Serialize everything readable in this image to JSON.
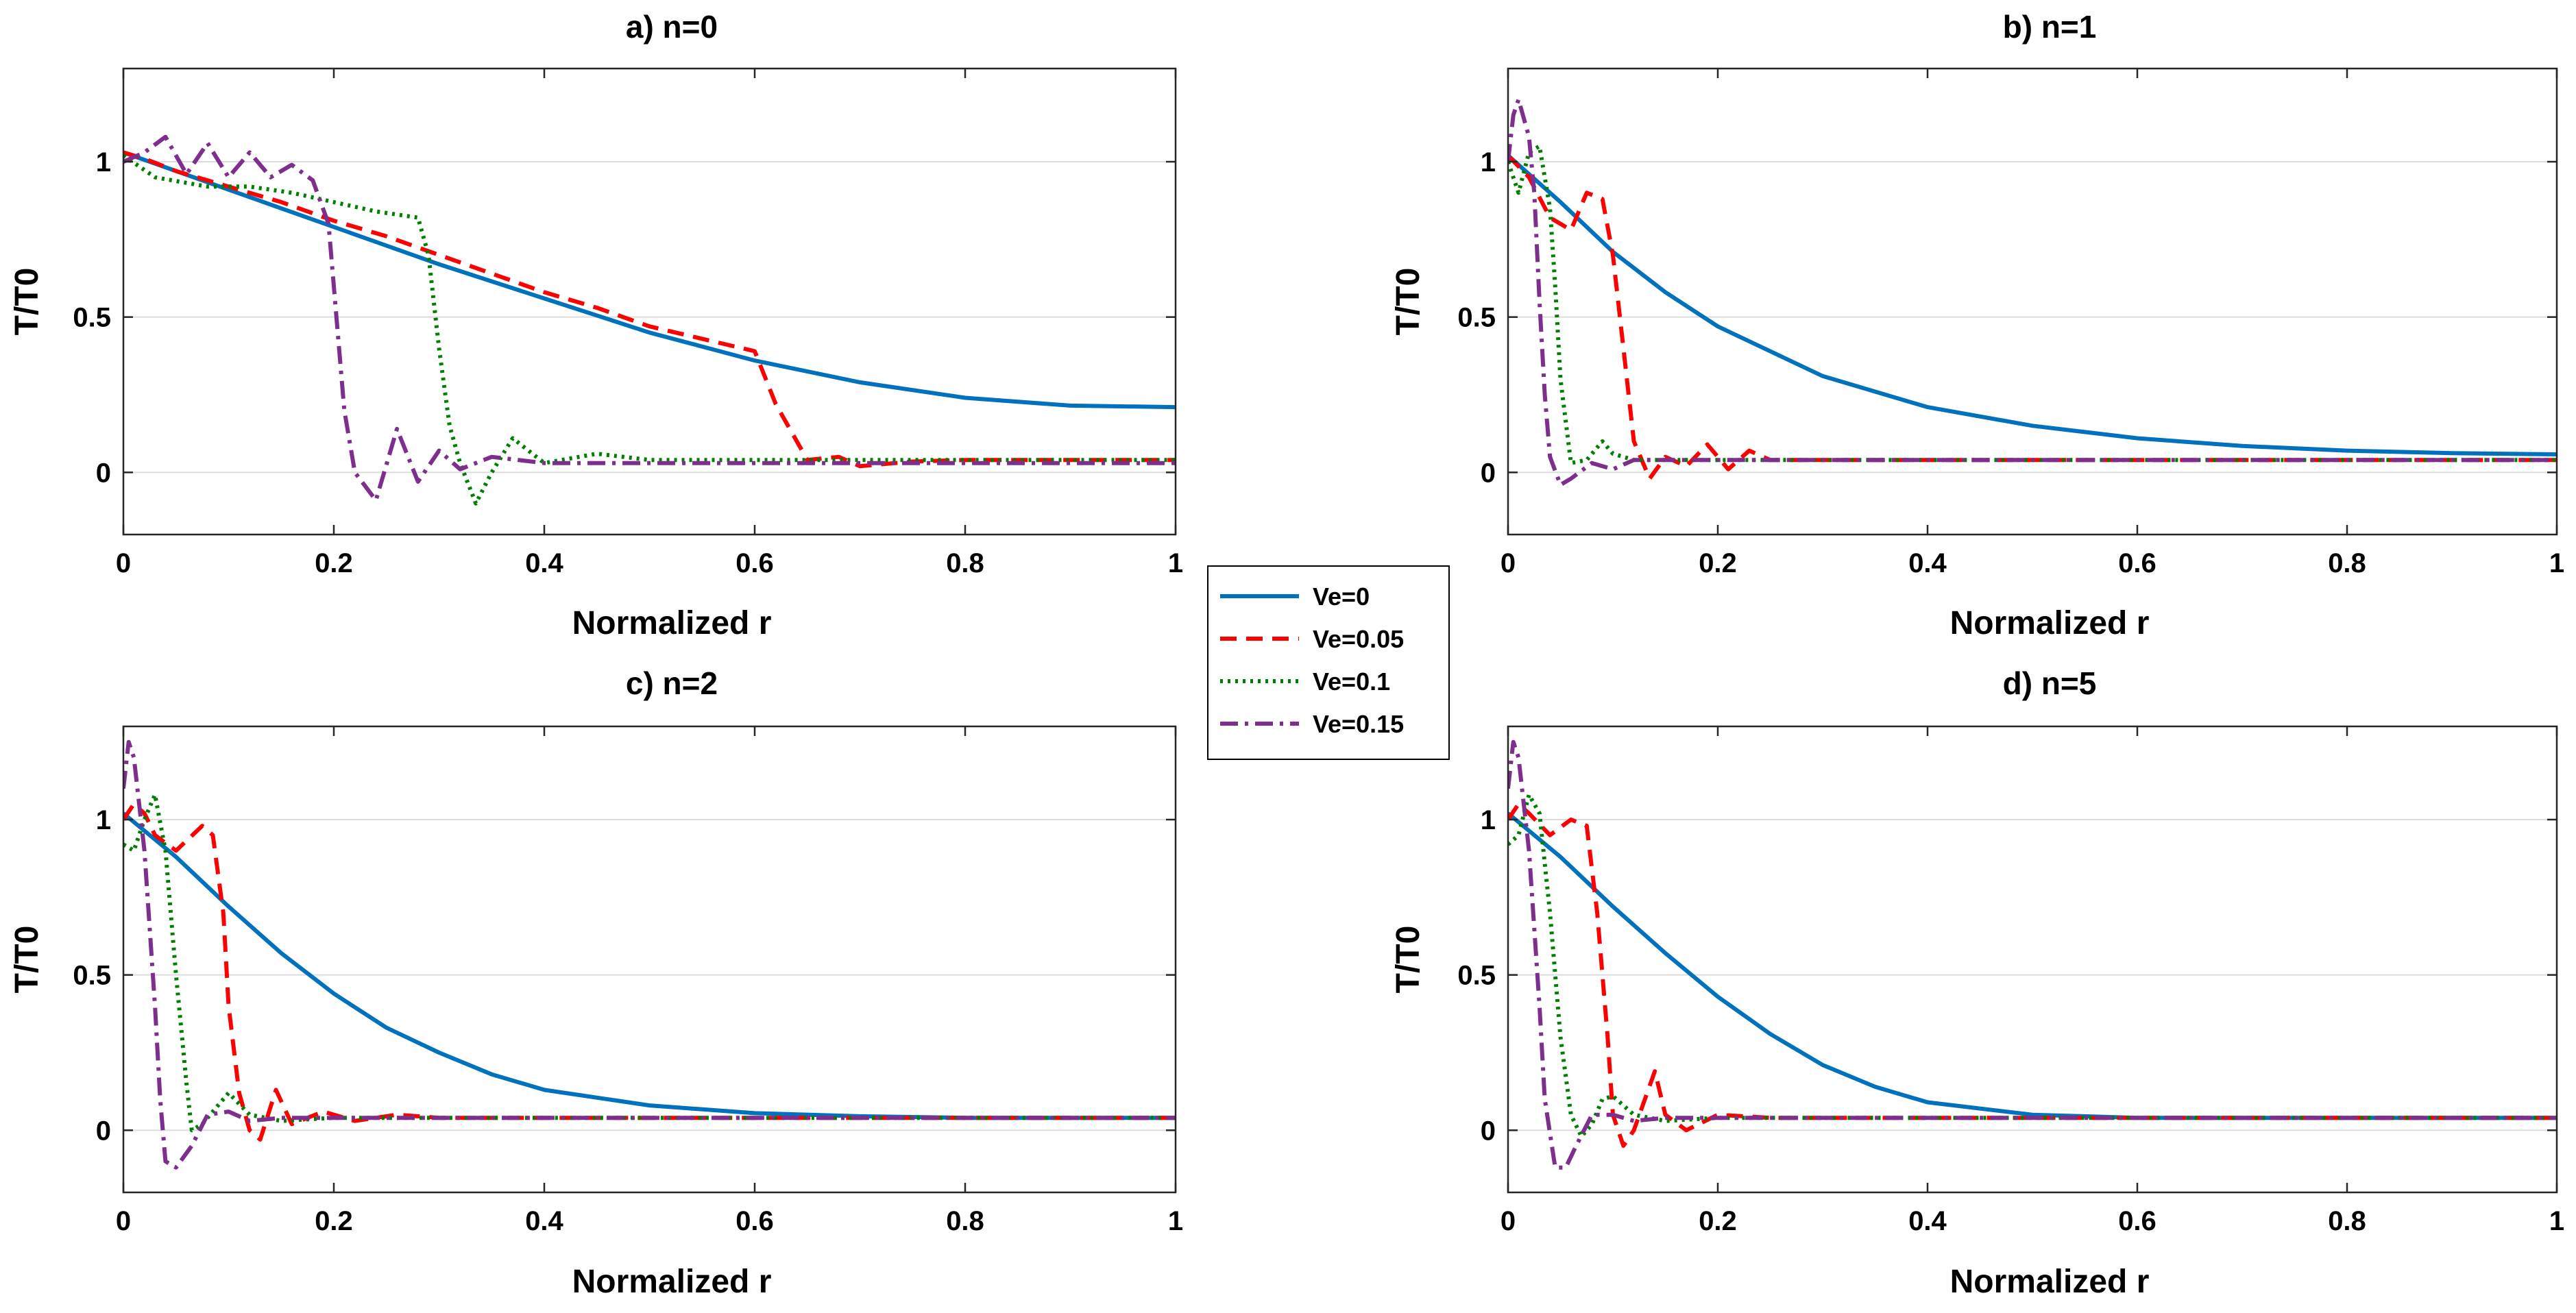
{
  "legend": {
    "entries": [
      {
        "label": "Ve=0",
        "color": "#0072BD",
        "dash": "solid"
      },
      {
        "label": "Ve=0.05",
        "color": "#FF0000",
        "dash": "dash"
      },
      {
        "label": "Ve=0.1",
        "color": "#008000",
        "dash": "dot"
      },
      {
        "label": "Ve=0.15",
        "color": "#7E2F8E",
        "dash": "dashdot"
      }
    ]
  },
  "chart_data": [
    {
      "type": "line",
      "title": "a) n=0",
      "xlabel": "Normalized r",
      "ylabel": "T/T0",
      "xlim": [
        0,
        1
      ],
      "ylim": [
        -0.2,
        1.3
      ],
      "xticks": [
        0,
        0.2,
        0.4,
        0.6,
        0.8,
        1
      ],
      "xtick_labels": [
        "0",
        "0.2",
        "0.4",
        "0.6",
        "0.8",
        "1"
      ],
      "yticks": [
        0,
        0.5,
        1
      ],
      "ytick_labels": [
        "0",
        "0.5",
        "1"
      ],
      "grid": "horizontal",
      "series": [
        {
          "name": "Ve=0",
          "x": [
            0,
            0.1,
            0.2,
            0.3,
            0.4,
            0.5,
            0.6,
            0.7,
            0.8,
            0.9,
            1.0
          ],
          "y": [
            1.03,
            0.91,
            0.79,
            0.67,
            0.56,
            0.45,
            0.36,
            0.29,
            0.24,
            0.215,
            0.21
          ]
        },
        {
          "name": "Ve=0.05",
          "x": [
            0,
            0.02,
            0.05,
            0.1,
            0.15,
            0.2,
            0.25,
            0.3,
            0.35,
            0.4,
            0.45,
            0.5,
            0.55,
            0.6,
            0.62,
            0.65,
            0.68,
            0.7,
            0.75,
            0.8,
            1.0
          ],
          "y": [
            1.03,
            1.01,
            0.97,
            0.92,
            0.87,
            0.81,
            0.76,
            0.7,
            0.64,
            0.58,
            0.53,
            0.47,
            0.43,
            0.39,
            0.22,
            0.04,
            0.05,
            0.02,
            0.035,
            0.04,
            0.04
          ]
        },
        {
          "name": "Ve=0.1",
          "x": [
            0,
            0.03,
            0.08,
            0.12,
            0.16,
            0.2,
            0.24,
            0.28,
            0.29,
            0.3,
            0.31,
            0.32,
            0.335,
            0.35,
            0.37,
            0.4,
            0.45,
            0.5,
            1.0
          ],
          "y": [
            1.02,
            0.95,
            0.92,
            0.92,
            0.9,
            0.87,
            0.84,
            0.82,
            0.7,
            0.4,
            0.15,
            0.03,
            -0.1,
            0.0,
            0.11,
            0.03,
            0.06,
            0.04,
            0.04
          ]
        },
        {
          "name": "Ve=0.15",
          "x": [
            0,
            0.02,
            0.04,
            0.06,
            0.08,
            0.1,
            0.12,
            0.14,
            0.16,
            0.18,
            0.195,
            0.21,
            0.22,
            0.24,
            0.26,
            0.28,
            0.3,
            0.32,
            0.35,
            0.4,
            1.0
          ],
          "y": [
            1.0,
            1.03,
            1.08,
            0.96,
            1.06,
            0.95,
            1.03,
            0.95,
            0.99,
            0.94,
            0.8,
            0.2,
            0.0,
            -0.09,
            0.14,
            -0.03,
            0.07,
            0.01,
            0.05,
            0.03,
            0.03
          ]
        }
      ]
    },
    {
      "type": "line",
      "title": "b) n=1",
      "xlabel": "Normalized r",
      "ylabel": "T/T0",
      "xlim": [
        0,
        1
      ],
      "ylim": [
        -0.2,
        1.3
      ],
      "xticks": [
        0,
        0.2,
        0.4,
        0.6,
        0.8,
        1
      ],
      "xtick_labels": [
        "0",
        "0.2",
        "0.4",
        "0.6",
        "0.8",
        "1"
      ],
      "yticks": [
        0,
        0.5,
        1
      ],
      "ytick_labels": [
        "0",
        "0.5",
        "1"
      ],
      "grid": "horizontal",
      "series": [
        {
          "name": "Ve=0",
          "x": [
            0,
            0.05,
            0.1,
            0.15,
            0.2,
            0.3,
            0.4,
            0.5,
            0.6,
            0.7,
            0.8,
            0.9,
            1.0
          ],
          "y": [
            1.02,
            0.87,
            0.71,
            0.58,
            0.47,
            0.31,
            0.21,
            0.15,
            0.11,
            0.085,
            0.07,
            0.062,
            0.058
          ]
        },
        {
          "name": "Ve=0.05",
          "x": [
            0,
            0.02,
            0.04,
            0.06,
            0.075,
            0.09,
            0.1,
            0.11,
            0.12,
            0.135,
            0.15,
            0.17,
            0.19,
            0.21,
            0.23,
            0.25,
            1.0
          ],
          "y": [
            1.02,
            0.95,
            0.82,
            0.78,
            0.9,
            0.88,
            0.7,
            0.4,
            0.1,
            -0.02,
            0.05,
            0.02,
            0.09,
            0.01,
            0.07,
            0.04,
            0.04
          ]
        },
        {
          "name": "Ve=0.1",
          "x": [
            0,
            0.01,
            0.02,
            0.03,
            0.04,
            0.045,
            0.05,
            0.06,
            0.075,
            0.09,
            0.1,
            0.12,
            0.15,
            1.0
          ],
          "y": [
            1.0,
            0.9,
            1.03,
            1.05,
            0.85,
            0.6,
            0.3,
            0.03,
            0.04,
            0.1,
            0.06,
            0.04,
            0.04,
            0.04
          ]
        },
        {
          "name": "Ve=0.15",
          "x": [
            0,
            0.005,
            0.01,
            0.02,
            0.025,
            0.03,
            0.035,
            0.04,
            0.05,
            0.06,
            0.08,
            0.1,
            0.12,
            0.15,
            1.0
          ],
          "y": [
            1.0,
            1.15,
            1.2,
            1.08,
            0.9,
            0.55,
            0.25,
            0.05,
            -0.04,
            -0.02,
            0.03,
            0.01,
            0.04,
            0.04,
            0.04
          ]
        }
      ]
    },
    {
      "type": "line",
      "title": "c) n=2",
      "xlabel": "Normalized r",
      "ylabel": "T/T0",
      "xlim": [
        0,
        1
      ],
      "ylim": [
        -0.2,
        1.3
      ],
      "xticks": [
        0,
        0.2,
        0.4,
        0.6,
        0.8,
        1
      ],
      "xtick_labels": [
        "0",
        "0.2",
        "0.4",
        "0.6",
        "0.8",
        "1"
      ],
      "yticks": [
        0,
        0.5,
        1
      ],
      "ytick_labels": [
        "0",
        "0.5",
        "1"
      ],
      "grid": "horizontal",
      "series": [
        {
          "name": "Ve=0",
          "x": [
            0,
            0.05,
            0.1,
            0.15,
            0.2,
            0.25,
            0.3,
            0.35,
            0.4,
            0.5,
            0.6,
            0.7,
            0.8,
            1.0
          ],
          "y": [
            1.02,
            0.88,
            0.72,
            0.57,
            0.44,
            0.33,
            0.25,
            0.18,
            0.13,
            0.08,
            0.055,
            0.045,
            0.04,
            0.04
          ]
        },
        {
          "name": "Ve=0.05",
          "x": [
            0,
            0.01,
            0.02,
            0.03,
            0.05,
            0.075,
            0.085,
            0.095,
            0.1,
            0.11,
            0.12,
            0.13,
            0.145,
            0.16,
            0.19,
            0.22,
            0.26,
            0.3,
            1.0
          ],
          "y": [
            1.0,
            1.05,
            1.02,
            0.95,
            0.9,
            0.98,
            0.95,
            0.7,
            0.4,
            0.12,
            0.0,
            -0.03,
            0.13,
            0.02,
            0.06,
            0.03,
            0.05,
            0.04,
            0.04
          ]
        },
        {
          "name": "Ve=0.1",
          "x": [
            0,
            0.01,
            0.02,
            0.03,
            0.04,
            0.05,
            0.06,
            0.065,
            0.075,
            0.09,
            0.1,
            0.12,
            0.15,
            0.2,
            1.0
          ],
          "y": [
            0.92,
            0.9,
            1.0,
            1.08,
            0.9,
            0.5,
            0.15,
            0.0,
            0.02,
            0.08,
            0.12,
            0.05,
            0.03,
            0.04,
            0.04
          ]
        },
        {
          "name": "Ve=0.15",
          "x": [
            0,
            0.005,
            0.01,
            0.02,
            0.03,
            0.035,
            0.04,
            0.05,
            0.065,
            0.08,
            0.1,
            0.12,
            0.15,
            0.2,
            1.0
          ],
          "y": [
            1.1,
            1.25,
            1.2,
            0.9,
            0.4,
            0.1,
            -0.1,
            -0.12,
            -0.05,
            0.05,
            0.06,
            0.03,
            0.04,
            0.04,
            0.04
          ]
        }
      ]
    },
    {
      "type": "line",
      "title": "d) n=5",
      "xlabel": "Normalized r",
      "ylabel": "T/T0",
      "xlim": [
        0,
        1
      ],
      "ylim": [
        -0.2,
        1.3
      ],
      "xticks": [
        0,
        0.2,
        0.4,
        0.6,
        0.8,
        1
      ],
      "xtick_labels": [
        "0",
        "0.2",
        "0.4",
        "0.6",
        "0.8",
        "1"
      ],
      "yticks": [
        0,
        0.5,
        1
      ],
      "ytick_labels": [
        "0",
        "0.5",
        "1"
      ],
      "grid": "horizontal",
      "series": [
        {
          "name": "Ve=0",
          "x": [
            0,
            0.05,
            0.1,
            0.15,
            0.2,
            0.25,
            0.3,
            0.35,
            0.4,
            0.5,
            0.6,
            0.7,
            0.8,
            1.0
          ],
          "y": [
            1.02,
            0.88,
            0.72,
            0.57,
            0.43,
            0.31,
            0.21,
            0.14,
            0.09,
            0.05,
            0.04,
            0.04,
            0.04,
            0.04
          ]
        },
        {
          "name": "Ve=0.05",
          "x": [
            0,
            0.01,
            0.02,
            0.04,
            0.06,
            0.075,
            0.085,
            0.095,
            0.1,
            0.11,
            0.12,
            0.14,
            0.15,
            0.17,
            0.2,
            0.25,
            1.0
          ],
          "y": [
            1.0,
            1.05,
            1.02,
            0.95,
            1.0,
            0.98,
            0.7,
            0.3,
            0.05,
            -0.05,
            0.0,
            0.19,
            0.05,
            0.0,
            0.05,
            0.04,
            0.04
          ]
        },
        {
          "name": "Ve=0.1",
          "x": [
            0,
            0.01,
            0.02,
            0.03,
            0.04,
            0.05,
            0.06,
            0.07,
            0.08,
            0.09,
            0.1,
            0.12,
            0.15,
            0.2,
            1.0
          ],
          "y": [
            0.92,
            0.95,
            1.08,
            1.02,
            0.7,
            0.3,
            0.05,
            -0.02,
            0.02,
            0.1,
            0.11,
            0.05,
            0.03,
            0.04,
            0.04
          ]
        },
        {
          "name": "Ve=0.15",
          "x": [
            0,
            0.005,
            0.01,
            0.02,
            0.03,
            0.035,
            0.045,
            0.055,
            0.065,
            0.08,
            0.1,
            0.12,
            0.15,
            0.2,
            1.0
          ],
          "y": [
            1.1,
            1.25,
            1.2,
            0.9,
            0.4,
            0.1,
            -0.12,
            -0.12,
            -0.05,
            0.05,
            0.05,
            0.03,
            0.04,
            0.04,
            0.04
          ]
        }
      ]
    }
  ]
}
